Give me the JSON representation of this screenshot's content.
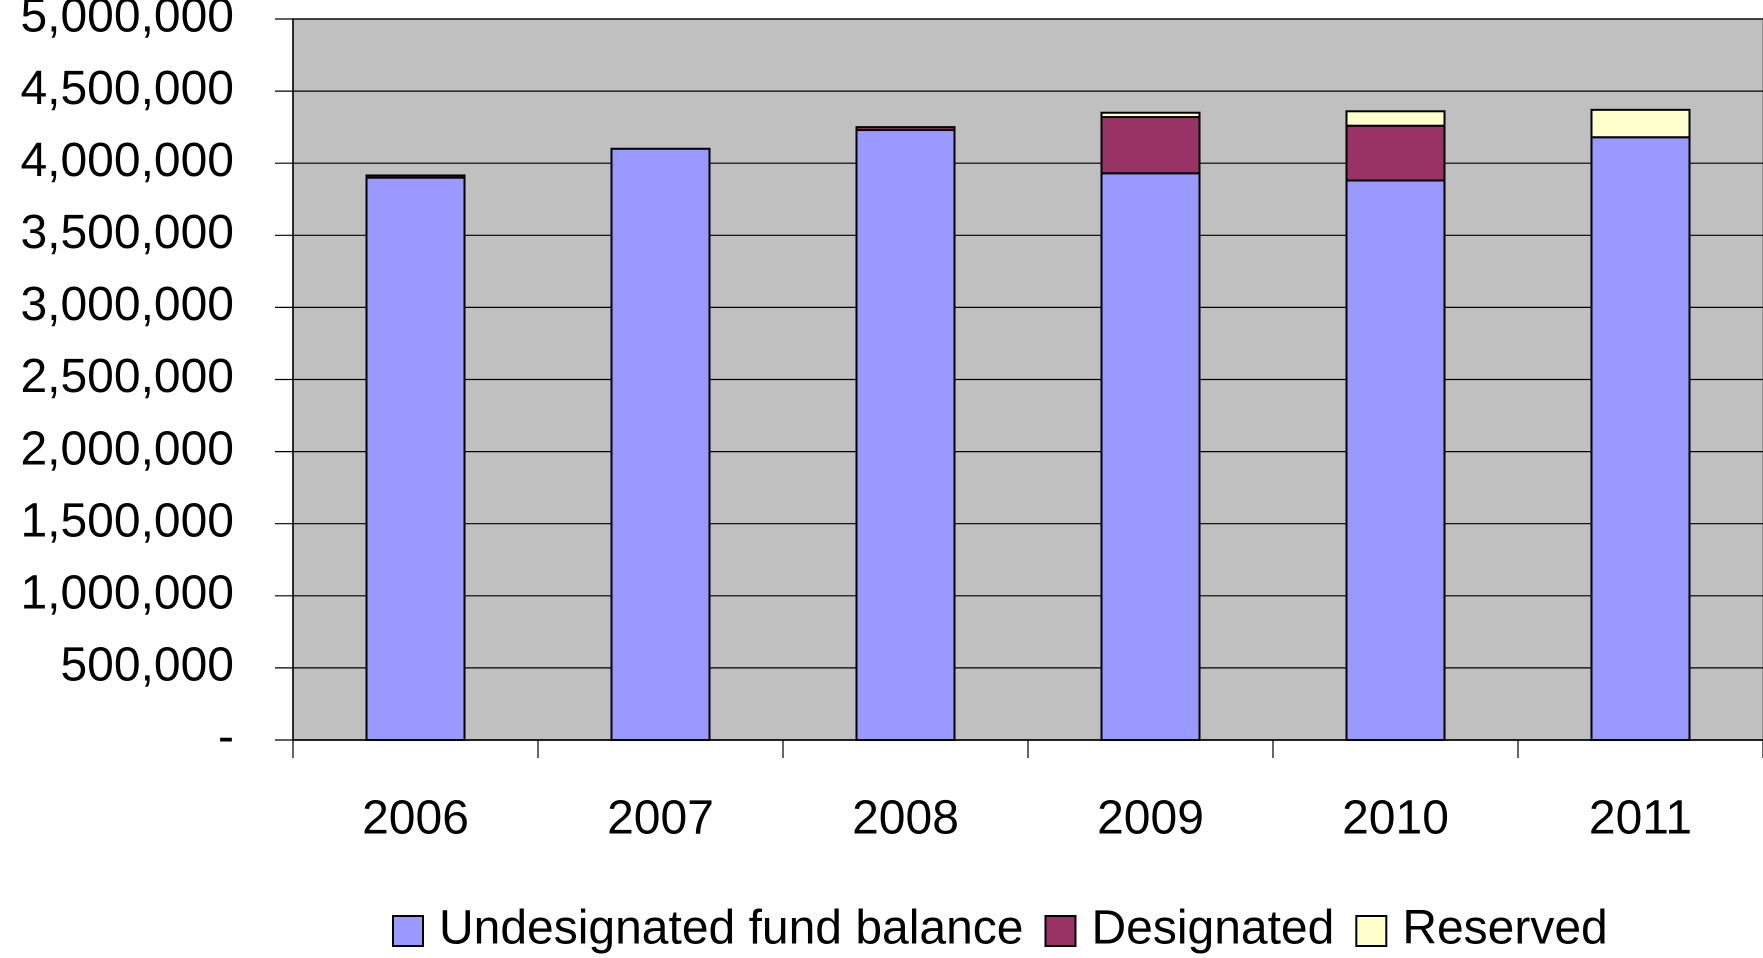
{
  "chart_data": {
    "type": "stacked_bar",
    "categories": [
      "2006",
      "2007",
      "2008",
      "2009",
      "2010",
      "2011"
    ],
    "series": [
      {
        "name": "Undesignated fund balance",
        "color": "#9999ff",
        "values": [
          3900000,
          4100000,
          4230000,
          3930000,
          3880000,
          4180000
        ]
      },
      {
        "name": "Designated",
        "color": "#993366",
        "values": [
          15000,
          0,
          20000,
          390000,
          380000,
          0
        ]
      },
      {
        "name": "Reserved",
        "color": "#ffffcc",
        "values": [
          0,
          0,
          0,
          30000,
          100000,
          190000
        ]
      }
    ],
    "ylim": [
      0,
      5000000
    ],
    "yticks": [
      {
        "value": 0,
        "label": "-"
      },
      {
        "value": 500000,
        "label": "500,000"
      },
      {
        "value": 1000000,
        "label": "1,000,000"
      },
      {
        "value": 1500000,
        "label": "1,500,000"
      },
      {
        "value": 2000000,
        "label": "2,000,000"
      },
      {
        "value": 2500000,
        "label": "2,500,000"
      },
      {
        "value": 3000000,
        "label": "3,000,000"
      },
      {
        "value": 3500000,
        "label": "3,500,000"
      },
      {
        "value": 4000000,
        "label": "4,000,000"
      },
      {
        "value": 4500000,
        "label": "4,500,000"
      },
      {
        "value": 5000000,
        "label": "5,000,000"
      }
    ],
    "grid": true,
    "plot_background": "#c0c0c0",
    "legend": "bottom"
  }
}
